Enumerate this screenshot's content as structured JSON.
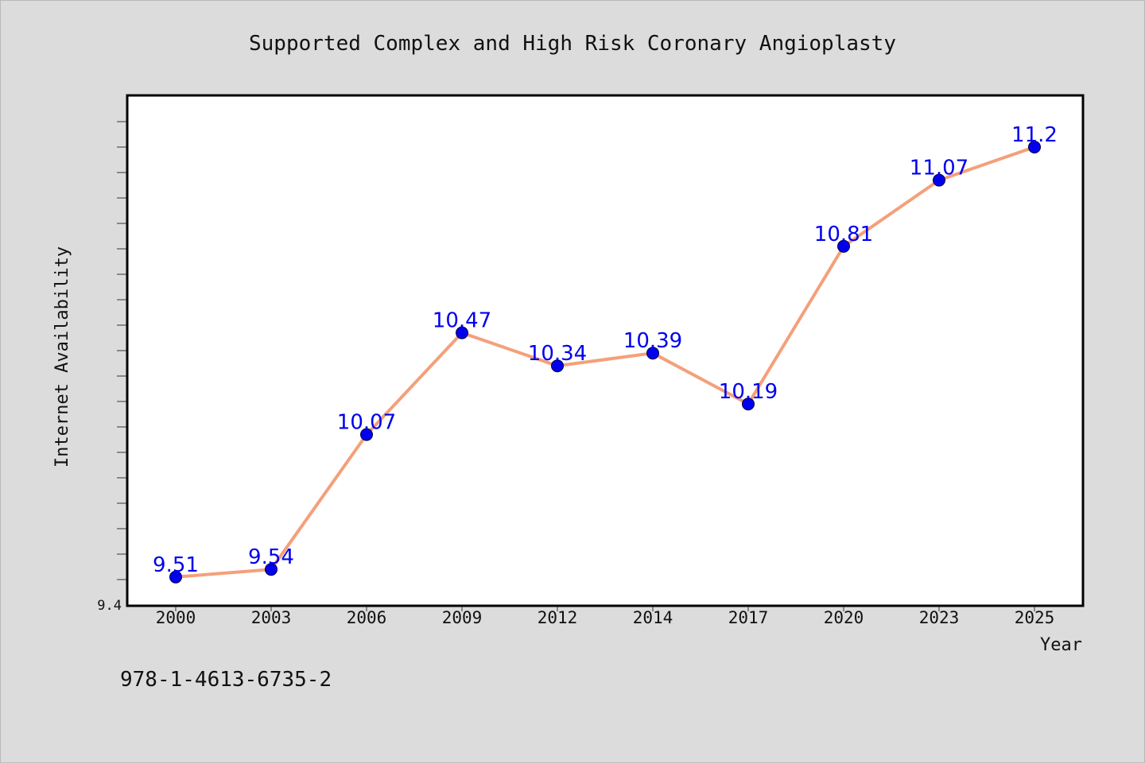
{
  "footer": {
    "code": "978-1-4613-6735-2"
  },
  "chart_data": {
    "type": "line",
    "title": "Supported Complex and High Risk Coronary Angioplasty",
    "xlabel": "Year",
    "ylabel": "Internet Availability",
    "categories": [
      "2000",
      "2003",
      "2006",
      "2009",
      "2012",
      "2014",
      "2017",
      "2020",
      "2023",
      "2025"
    ],
    "values": [
      9.51,
      9.54,
      10.07,
      10.47,
      10.34,
      10.39,
      10.19,
      10.81,
      11.07,
      11.2
    ],
    "data_labels": [
      "9.51",
      "9.54",
      "10.07",
      "10.47",
      "10.34",
      "10.39",
      "10.19",
      "10.81",
      "11.07",
      "11.2"
    ],
    "y_tick_labels": [
      "9.4"
    ],
    "ylim": [
      9.4,
      11.4
    ],
    "grid": false,
    "line_color": "#f4a07a",
    "marker_color": "#0000ee",
    "label_color": "#0000ee"
  }
}
